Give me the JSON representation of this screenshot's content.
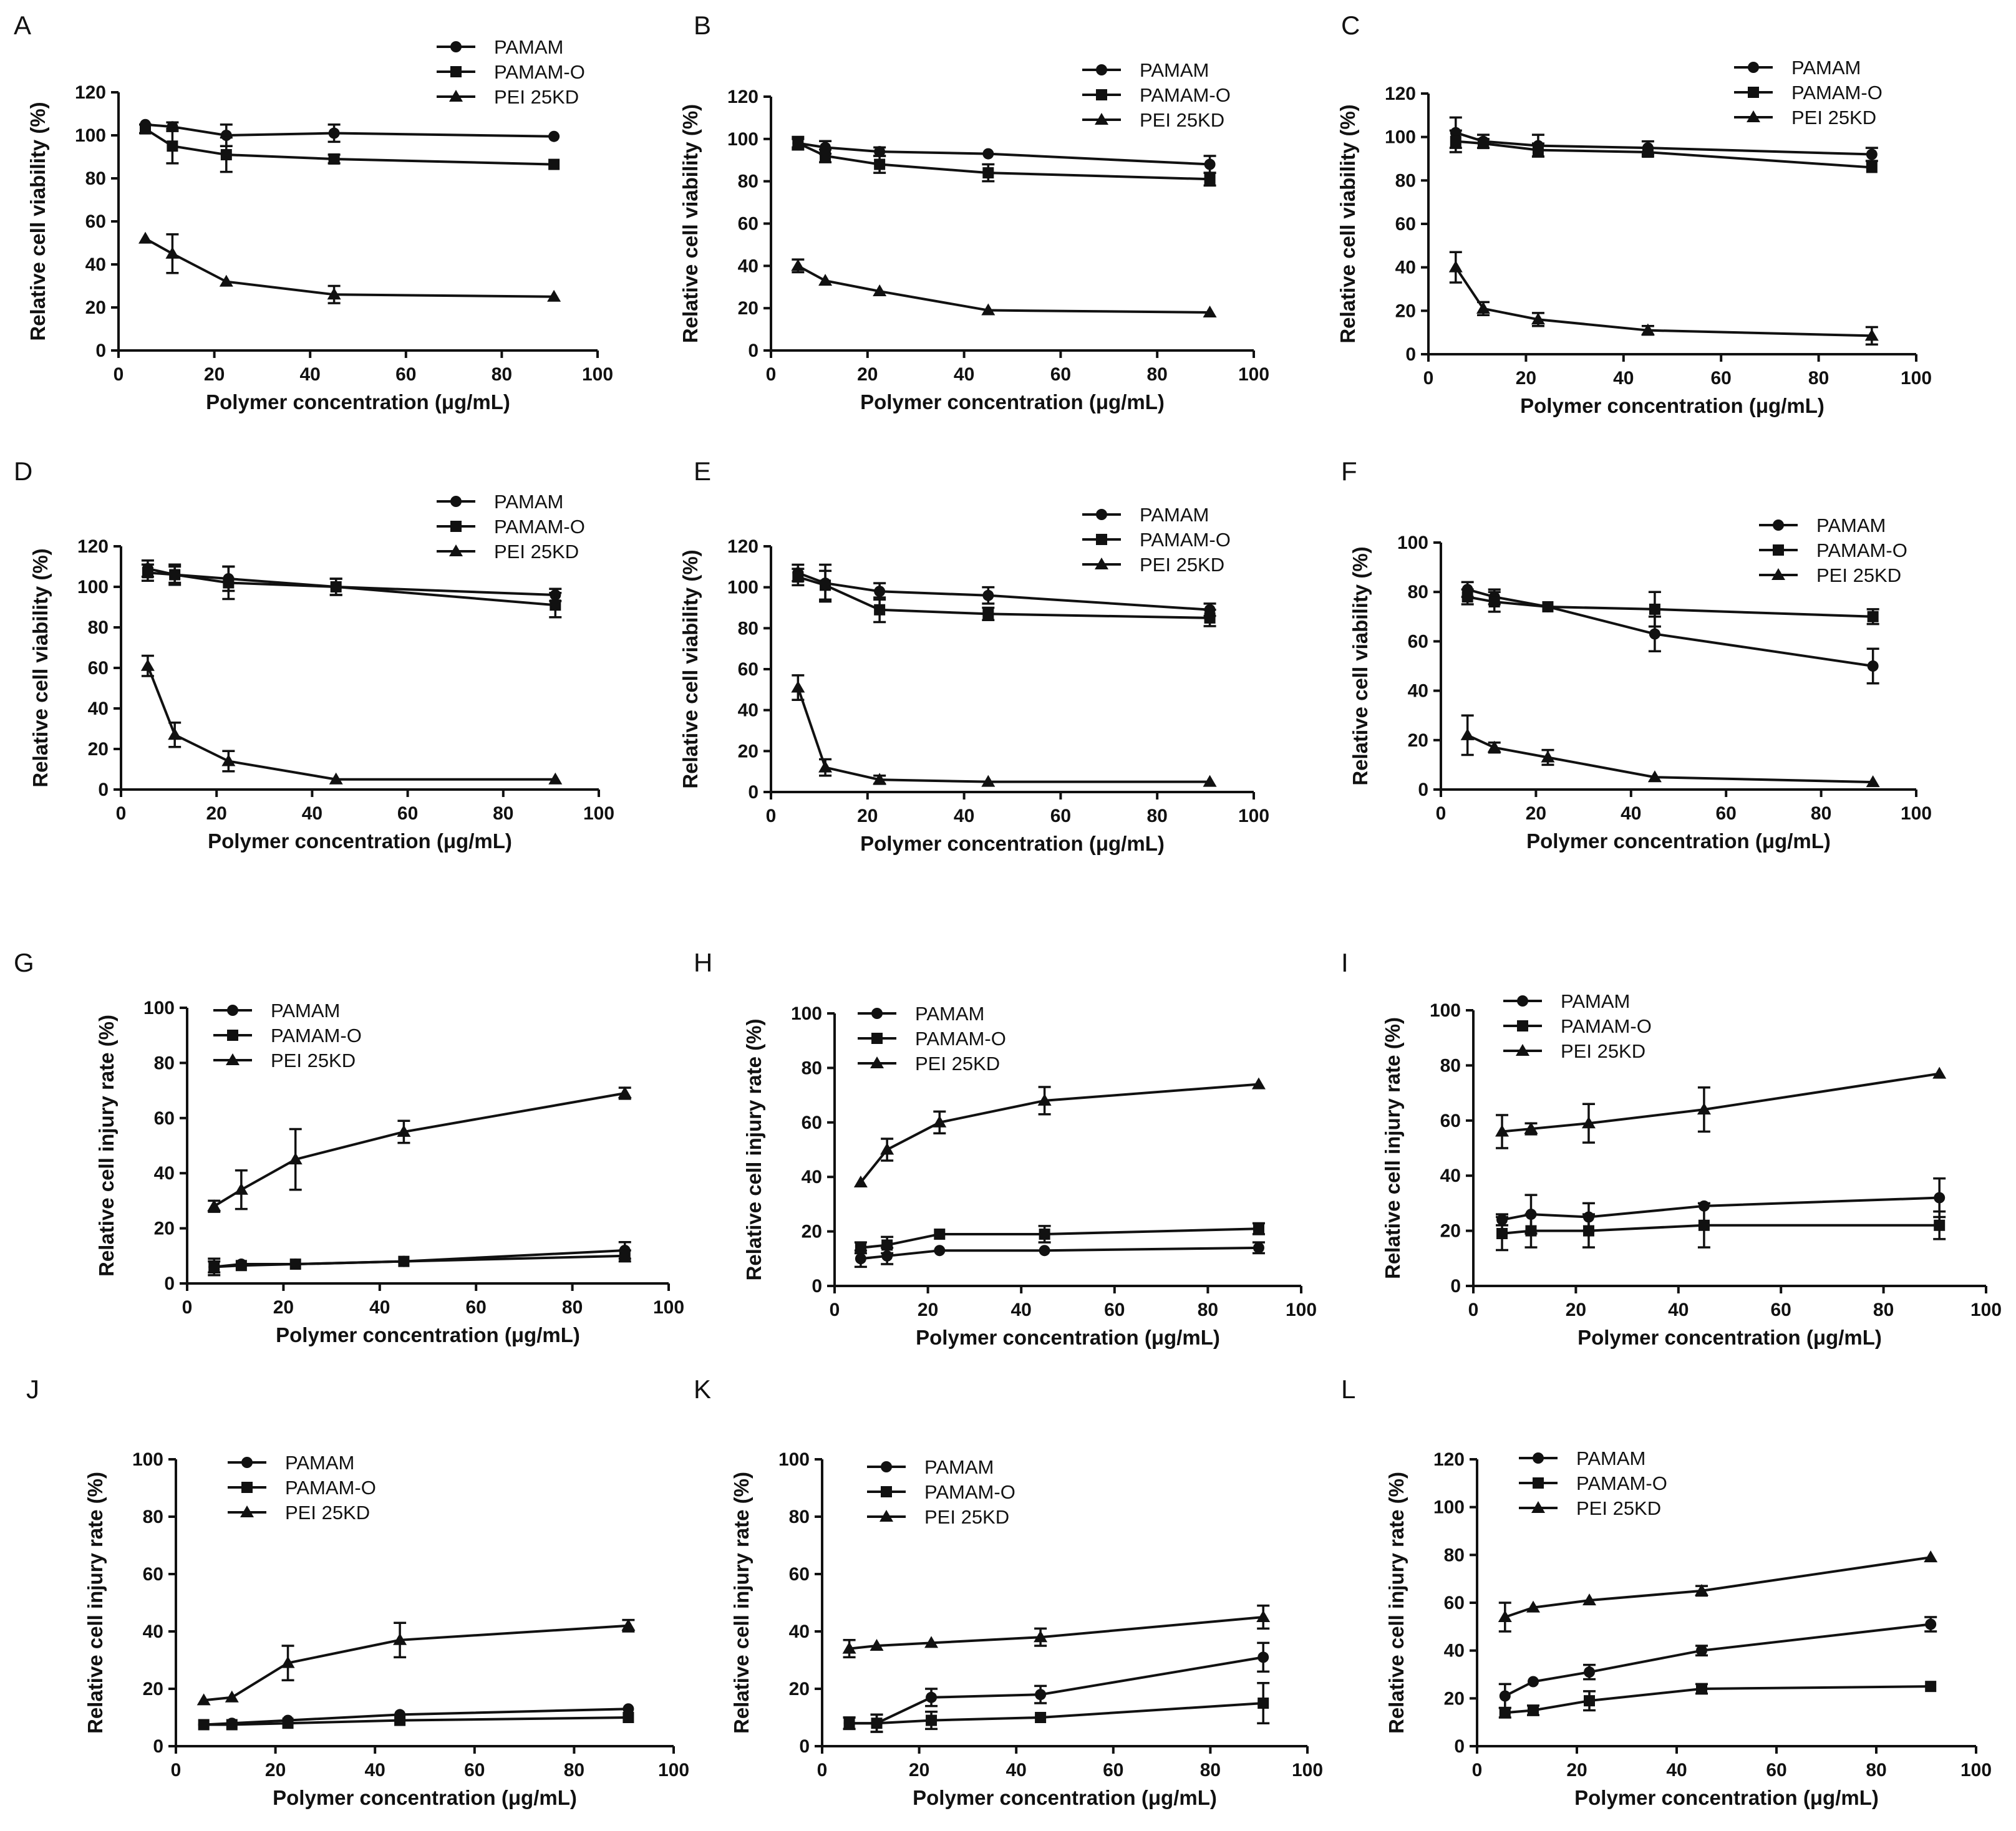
{
  "figure": {
    "panels": [
      "A",
      "B",
      "C",
      "D",
      "E",
      "F",
      "G",
      "H",
      "I",
      "J",
      "K",
      "L"
    ]
  },
  "chart_data": [
    {
      "panel": "A",
      "type": "line",
      "x": [
        5.6,
        11.25,
        22.5,
        45,
        90.9
      ],
      "xlabel": "Polymer concentration (μg/mL)",
      "ylabel": "Relative cell viability (%)",
      "xlim": [
        0,
        100
      ],
      "ylim": [
        0,
        120
      ],
      "xticks": [
        "0",
        "20",
        "40",
        "60",
        "80",
        "100"
      ],
      "yticks": [
        "0",
        "20",
        "40",
        "60",
        "80",
        "100",
        "120"
      ],
      "legend": "top-right",
      "series": [
        {
          "name": "PAMAM",
          "marker": "circle",
          "values": [
            105,
            104,
            100,
            101,
            99.5
          ],
          "errors": [
            1,
            2,
            5,
            4,
            1
          ]
        },
        {
          "name": "PAMAM-O",
          "marker": "square",
          "values": [
            103,
            95,
            91,
            89,
            86.5
          ],
          "errors": [
            2,
            8,
            8,
            2,
            1
          ]
        },
        {
          "name": "PEI 25KD",
          "marker": "triangle",
          "values": [
            52,
            45,
            32,
            26,
            25
          ],
          "errors": [
            1,
            9,
            1,
            4,
            1
          ]
        }
      ]
    },
    {
      "panel": "B",
      "type": "line",
      "x": [
        5.6,
        11.25,
        22.5,
        45,
        90.9
      ],
      "xlabel": "Polymer concentration (μg/mL)",
      "ylabel": "Relative cell viability (%)",
      "xlim": [
        0,
        100
      ],
      "ylim": [
        0,
        120
      ],
      "xticks": [
        "0",
        "20",
        "40",
        "60",
        "80",
        "100"
      ],
      "yticks": [
        "0",
        "20",
        "40",
        "60",
        "80",
        "100",
        "120"
      ],
      "legend": "top-right",
      "series": [
        {
          "name": "PAMAM",
          "marker": "circle",
          "values": [
            98,
            96,
            94,
            93,
            88
          ],
          "errors": [
            2,
            3,
            2,
            1,
            4
          ]
        },
        {
          "name": "PAMAM-O",
          "marker": "square",
          "values": [
            98,
            92,
            88,
            84,
            81
          ],
          "errors": [
            3,
            3,
            4,
            4,
            3
          ]
        },
        {
          "name": "PEI 25KD",
          "marker": "triangle",
          "values": [
            40,
            33,
            28,
            19,
            18
          ],
          "errors": [
            3,
            1,
            1,
            1,
            1
          ]
        }
      ]
    },
    {
      "panel": "C",
      "type": "line",
      "x": [
        5.6,
        11.25,
        22.5,
        45,
        90.9
      ],
      "xlabel": "Polymer concentration (μg/mL)",
      "ylabel": "Relative cell viability (%)",
      "xlim": [
        0,
        100
      ],
      "ylim": [
        0,
        120
      ],
      "xticks": [
        "0",
        "20",
        "40",
        "60",
        "80",
        "100"
      ],
      "yticks": [
        "0",
        "20",
        "40",
        "60",
        "80",
        "100",
        "120"
      ],
      "legend": "top-right",
      "series": [
        {
          "name": "PAMAM",
          "marker": "circle",
          "values": [
            102,
            98,
            96,
            95,
            92
          ],
          "errors": [
            7,
            3,
            5,
            3,
            3
          ]
        },
        {
          "name": "PAMAM-O",
          "marker": "square",
          "values": [
            98,
            97,
            94,
            93,
            86
          ],
          "errors": [
            5,
            2,
            3,
            2,
            1
          ]
        },
        {
          "name": "PEI 25KD",
          "marker": "triangle",
          "values": [
            40,
            21,
            16,
            11,
            8.5
          ],
          "errors": [
            7,
            3,
            3,
            2,
            4
          ]
        }
      ]
    },
    {
      "panel": "D",
      "type": "line",
      "x": [
        5.6,
        11.25,
        22.5,
        45,
        90.9
      ],
      "xlabel": "Polymer concentration (μg/mL)",
      "ylabel": "Relative cell viability (%)",
      "xlim": [
        0,
        100
      ],
      "ylim": [
        0,
        120
      ],
      "xticks": [
        "0",
        "20",
        "40",
        "60",
        "80",
        "100"
      ],
      "yticks": [
        "0",
        "20",
        "40",
        "60",
        "80",
        "100",
        "120"
      ],
      "legend": "top-right",
      "series": [
        {
          "name": "PAMAM",
          "marker": "circle",
          "values": [
            109,
            106,
            104,
            100,
            96
          ],
          "errors": [
            4,
            4,
            6,
            4,
            3
          ]
        },
        {
          "name": "PAMAM-O",
          "marker": "square",
          "values": [
            107,
            106,
            102,
            100,
            91
          ],
          "errors": [
            4,
            5,
            8,
            4,
            6
          ]
        },
        {
          "name": "PEI 25KD",
          "marker": "triangle",
          "values": [
            61,
            27,
            14,
            5,
            5
          ],
          "errors": [
            5,
            6,
            5,
            1,
            1
          ]
        }
      ]
    },
    {
      "panel": "E",
      "type": "line",
      "x": [
        5.6,
        11.25,
        22.5,
        45,
        90.9
      ],
      "xlabel": "Polymer concentration (μg/mL)",
      "ylabel": "Relative cell viability (%)",
      "xlim": [
        0,
        100
      ],
      "ylim": [
        0,
        120
      ],
      "xticks": [
        "0",
        "20",
        "40",
        "60",
        "80",
        "100"
      ],
      "yticks": [
        "0",
        "20",
        "40",
        "60",
        "80",
        "100",
        "120"
      ],
      "legend": "top-right",
      "series": [
        {
          "name": "PAMAM",
          "marker": "circle",
          "values": [
            107,
            102,
            98,
            96,
            89
          ],
          "errors": [
            4,
            9,
            4,
            4,
            3
          ]
        },
        {
          "name": "PAMAM-O",
          "marker": "square",
          "values": [
            105,
            101,
            89,
            87,
            85
          ],
          "errors": [
            4,
            7,
            6,
            3,
            4
          ]
        },
        {
          "name": "PEI 25KD",
          "marker": "triangle",
          "values": [
            51,
            12,
            6,
            5,
            5
          ],
          "errors": [
            6,
            4,
            2,
            1,
            1
          ]
        }
      ]
    },
    {
      "panel": "F",
      "type": "line",
      "x": [
        5.6,
        11.25,
        22.5,
        45,
        90.9
      ],
      "xlabel": "Polymer concentration (μg/mL)",
      "ylabel": "Relative cell viability (%)",
      "xlim": [
        0,
        100
      ],
      "ylim": [
        0,
        100
      ],
      "xticks": [
        "0",
        "20",
        "40",
        "60",
        "80",
        "100"
      ],
      "yticks": [
        "0",
        "20",
        "40",
        "60",
        "80",
        "100"
      ],
      "legend": "top-right",
      "series": [
        {
          "name": "PAMAM",
          "marker": "circle",
          "values": [
            81,
            78,
            74,
            63,
            50
          ],
          "errors": [
            3,
            3,
            1,
            7,
            7
          ]
        },
        {
          "name": "PAMAM-O",
          "marker": "square",
          "values": [
            78,
            76,
            74,
            73,
            70
          ],
          "errors": [
            3,
            4,
            1,
            7,
            3
          ]
        },
        {
          "name": "PEI 25KD",
          "marker": "triangle",
          "values": [
            22,
            17,
            13,
            5,
            3
          ],
          "errors": [
            8,
            2,
            3,
            1,
            1
          ]
        }
      ]
    },
    {
      "panel": "G",
      "type": "line",
      "x": [
        5.6,
        11.25,
        22.5,
        45,
        90.9
      ],
      "xlabel": "Polymer concentration (μg/mL)",
      "ylabel": "Relative cell injury rate (%)",
      "xlim": [
        0,
        100
      ],
      "ylim": [
        0,
        100
      ],
      "xticks": [
        "0",
        "20",
        "40",
        "60",
        "80",
        "100"
      ],
      "yticks": [
        "0",
        "20",
        "40",
        "60",
        "80",
        "100"
      ],
      "legend": "top-left",
      "series": [
        {
          "name": "PAMAM",
          "marker": "circle",
          "values": [
            6,
            7,
            7,
            8,
            12
          ],
          "errors": [
            2,
            1,
            1,
            1,
            3
          ]
        },
        {
          "name": "PAMAM-O",
          "marker": "square",
          "values": [
            6,
            6.5,
            7,
            8,
            10
          ],
          "errors": [
            3,
            1,
            1,
            1,
            2
          ]
        },
        {
          "name": "PEI 25KD",
          "marker": "triangle",
          "values": [
            28,
            34,
            45,
            55,
            69
          ],
          "errors": [
            2,
            7,
            11,
            4,
            2
          ]
        }
      ]
    },
    {
      "panel": "H",
      "type": "line",
      "x": [
        5.6,
        11.25,
        22.5,
        45,
        90.9
      ],
      "xlabel": "Polymer concentration (μg/mL)",
      "ylabel": "Relative cell injury rate (%)",
      "xlim": [
        0,
        100
      ],
      "ylim": [
        0,
        100
      ],
      "xticks": [
        "0",
        "20",
        "40",
        "60",
        "80",
        "100"
      ],
      "yticks": [
        "0",
        "20",
        "40",
        "60",
        "80",
        "100"
      ],
      "legend": "top-left",
      "series": [
        {
          "name": "PAMAM",
          "marker": "circle",
          "values": [
            10,
            11,
            13,
            13,
            14
          ],
          "errors": [
            3,
            3,
            1,
            1,
            2
          ]
        },
        {
          "name": "PAMAM-O",
          "marker": "square",
          "values": [
            14,
            15,
            19,
            19,
            21
          ],
          "errors": [
            2,
            3,
            1,
            3,
            2
          ]
        },
        {
          "name": "PEI 25KD",
          "marker": "triangle",
          "values": [
            38,
            50,
            60,
            68,
            74
          ],
          "errors": [
            1,
            4,
            4,
            5,
            1
          ]
        }
      ]
    },
    {
      "panel": "I",
      "type": "line",
      "x": [
        5.6,
        11.25,
        22.5,
        45,
        90.9
      ],
      "xlabel": "Polymer concentration (μg/mL)",
      "ylabel": "Relative cell injury rate (%)",
      "xlim": [
        0,
        100
      ],
      "ylim": [
        0,
        100
      ],
      "xticks": [
        "0",
        "20",
        "40",
        "60",
        "80",
        "100"
      ],
      "yticks": [
        "0",
        "20",
        "40",
        "60",
        "80",
        "100"
      ],
      "legend": "top-left",
      "series": [
        {
          "name": "PAMAM",
          "marker": "circle",
          "values": [
            24,
            26,
            25,
            29,
            32
          ],
          "errors": [
            2,
            7,
            5,
            1,
            7
          ]
        },
        {
          "name": "PAMAM-O",
          "marker": "square",
          "values": [
            19,
            20,
            20,
            22,
            22
          ],
          "errors": [
            6,
            6,
            6,
            8,
            5
          ]
        },
        {
          "name": "PEI 25KD",
          "marker": "triangle",
          "values": [
            56,
            57,
            59,
            64,
            77
          ],
          "errors": [
            6,
            2,
            7,
            8,
            1
          ]
        }
      ]
    },
    {
      "panel": "J",
      "type": "line",
      "x": [
        5.6,
        11.25,
        22.5,
        45,
        90.9
      ],
      "xlabel": "Polymer concentration (μg/mL)",
      "ylabel": "Relative cell injury rate (%)",
      "xlim": [
        0,
        100
      ],
      "ylim": [
        0,
        100
      ],
      "xticks": [
        "0",
        "20",
        "40",
        "60",
        "80",
        "100"
      ],
      "yticks": [
        "0",
        "20",
        "40",
        "60",
        "80",
        "100"
      ],
      "legend": "top-left",
      "series": [
        {
          "name": "PAMAM",
          "marker": "circle",
          "values": [
            7.5,
            8,
            9,
            11,
            13
          ],
          "errors": [
            1,
            1,
            1,
            1,
            1
          ]
        },
        {
          "name": "PAMAM-O",
          "marker": "square",
          "values": [
            7.5,
            7.5,
            8,
            9,
            10
          ],
          "errors": [
            1,
            1,
            1,
            1,
            1
          ]
        },
        {
          "name": "PEI 25KD",
          "marker": "triangle",
          "values": [
            16,
            17,
            29,
            37,
            42
          ],
          "errors": [
            1,
            1,
            6,
            6,
            2
          ]
        }
      ]
    },
    {
      "panel": "K",
      "type": "line",
      "x": [
        5.6,
        11.25,
        22.5,
        45,
        90.9
      ],
      "xlabel": "Polymer concentration (μg/mL)",
      "ylabel": "Relative cell injury rate (%)",
      "xlim": [
        0,
        100
      ],
      "ylim": [
        0,
        100
      ],
      "xticks": [
        "0",
        "20",
        "40",
        "60",
        "80",
        "100"
      ],
      "yticks": [
        "0",
        "20",
        "40",
        "60",
        "80",
        "100"
      ],
      "legend": "top-left",
      "series": [
        {
          "name": "PAMAM",
          "marker": "circle",
          "values": [
            8,
            8,
            17,
            18,
            31
          ],
          "errors": [
            2,
            3,
            3,
            3,
            5
          ]
        },
        {
          "name": "PAMAM-O",
          "marker": "square",
          "values": [
            8,
            8,
            9,
            10,
            15
          ],
          "errors": [
            2,
            3,
            3,
            1,
            7
          ]
        },
        {
          "name": "PEI 25KD",
          "marker": "triangle",
          "values": [
            34,
            35,
            36,
            38,
            45
          ],
          "errors": [
            3,
            1,
            1,
            3,
            4
          ]
        }
      ]
    },
    {
      "panel": "L",
      "type": "line",
      "x": [
        5.6,
        11.25,
        22.5,
        45,
        90.9
      ],
      "xlabel": "Polymer concentration (μg/mL)",
      "ylabel": "Relative cell injury rate (%)",
      "xlim": [
        0,
        100
      ],
      "ylim": [
        0,
        120
      ],
      "xticks": [
        "0",
        "20",
        "40",
        "60",
        "80",
        "100"
      ],
      "yticks": [
        "0",
        "20",
        "40",
        "60",
        "80",
        "100",
        "120"
      ],
      "legend": "top-left",
      "series": [
        {
          "name": "PAMAM",
          "marker": "circle",
          "values": [
            21,
            27,
            31,
            40,
            51
          ],
          "errors": [
            5,
            1,
            3,
            2,
            3
          ]
        },
        {
          "name": "PAMAM-O",
          "marker": "square",
          "values": [
            14,
            15,
            19,
            24,
            25
          ],
          "errors": [
            2,
            2,
            4,
            2,
            1
          ]
        },
        {
          "name": "PEI 25KD",
          "marker": "triangle",
          "values": [
            54,
            58,
            61,
            65,
            79
          ],
          "errors": [
            6,
            1,
            1,
            2,
            1
          ]
        }
      ]
    }
  ]
}
